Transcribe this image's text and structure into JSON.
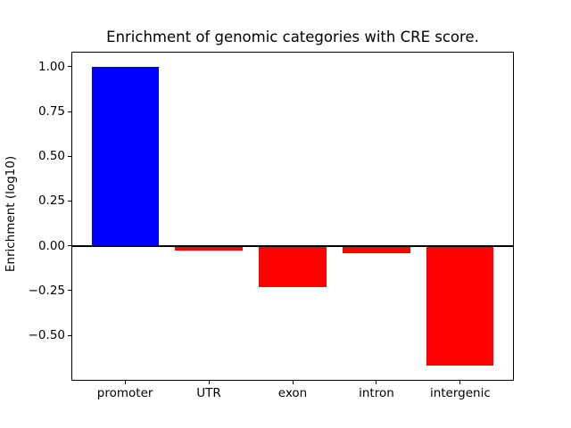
{
  "chart_data": {
    "type": "bar",
    "title": "Enrichment of genomic categories with CRE score.",
    "xlabel": "",
    "ylabel": "Enrichment (log10)",
    "categories": [
      "promoter",
      "UTR",
      "exon",
      "intron",
      "intergenic"
    ],
    "values": [
      1.0,
      -0.025,
      -0.23,
      -0.04,
      -0.67
    ],
    "bar_colors": [
      "#0000ff",
      "#ff0000",
      "#ff0000",
      "#ff0000",
      "#ff0000"
    ],
    "colors": {
      "positive": "#0000ff",
      "negative": "#ff0000",
      "axis": "#000000",
      "background": "#ffffff"
    },
    "ylim": [
      -0.754,
      1.084
    ],
    "xlim": [
      -0.64,
      4.64
    ],
    "yticks": [
      {
        "value": 1.0,
        "label": "1.00"
      },
      {
        "value": 0.75,
        "label": "0.75"
      },
      {
        "value": 0.5,
        "label": "0.50"
      },
      {
        "value": 0.25,
        "label": "0.25"
      },
      {
        "value": 0.0,
        "label": "0.00"
      },
      {
        "value": -0.25,
        "label": "−0.25"
      },
      {
        "value": -0.5,
        "label": "−0.50"
      }
    ],
    "bar_width_frac": 0.8,
    "zero_line": true,
    "grid": false,
    "legend": null
  }
}
